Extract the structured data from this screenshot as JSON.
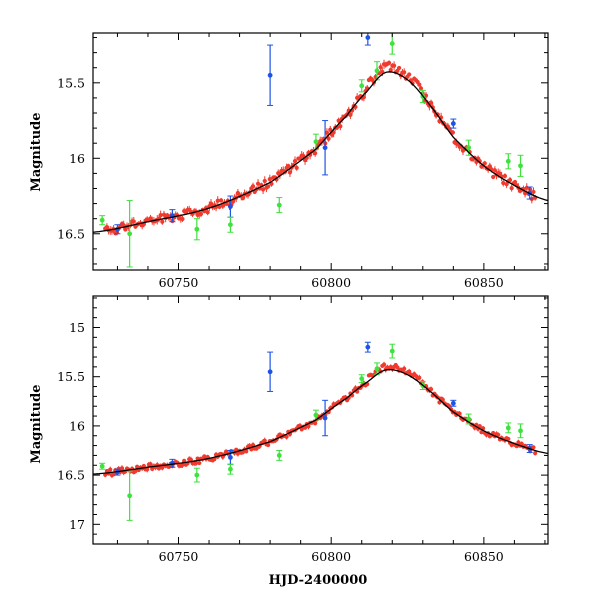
{
  "chart_data": [
    {
      "type": "scatter",
      "title": "",
      "xlabel": "",
      "ylabel": "Magnitude",
      "xlim": [
        60722,
        60871
      ],
      "ylim": [
        16.74,
        15.17
      ],
      "y_inverted": true,
      "x_ticks": [
        60750,
        60800,
        60850
      ],
      "y_ticks": [
        15.5,
        16,
        16.5
      ],
      "model_curve": {
        "x": [
          60722,
          60740,
          60760,
          60780,
          60795,
          60805,
          60812,
          60818,
          60825,
          60832,
          60840,
          60850,
          60860,
          60871
        ],
        "y": [
          16.49,
          16.42,
          16.33,
          16.16,
          15.94,
          15.72,
          15.55,
          15.43,
          15.48,
          15.64,
          15.86,
          16.05,
          16.18,
          16.28
        ]
      },
      "series": [
        {
          "color": "#1e54e6",
          "points": [
            {
              "x": 60730,
              "y": 16.47,
              "err": 0.03
            },
            {
              "x": 60748,
              "y": 16.38,
              "err": 0.04
            },
            {
              "x": 60767,
              "y": 16.32,
              "err": 0.07
            },
            {
              "x": 60780,
              "y": 15.45,
              "err": 0.2
            },
            {
              "x": 60798,
              "y": 15.93,
              "err": 0.18
            },
            {
              "x": 60812,
              "y": 15.2,
              "err": 0.05
            },
            {
              "x": 60840,
              "y": 15.77,
              "err": 0.03
            },
            {
              "x": 60865,
              "y": 16.23,
              "err": 0.04
            }
          ]
        },
        {
          "color": "#3de23d",
          "points": [
            {
              "x": 60725,
              "y": 16.41,
              "err": 0.03
            },
            {
              "x": 60734,
              "y": 16.5,
              "err": 0.22
            },
            {
              "x": 60756,
              "y": 16.47,
              "err": 0.07
            },
            {
              "x": 60767,
              "y": 16.44,
              "err": 0.05
            },
            {
              "x": 60783,
              "y": 16.31,
              "err": 0.05
            },
            {
              "x": 60795,
              "y": 15.89,
              "err": 0.05
            },
            {
              "x": 60810,
              "y": 15.52,
              "err": 0.04
            },
            {
              "x": 60815,
              "y": 15.42,
              "err": 0.06
            },
            {
              "x": 60820,
              "y": 15.24,
              "err": 0.07
            },
            {
              "x": 60830,
              "y": 15.59,
              "err": 0.04
            },
            {
              "x": 60845,
              "y": 15.93,
              "err": 0.05
            },
            {
              "x": 60858,
              "y": 16.02,
              "err": 0.05
            },
            {
              "x": 60862,
              "y": 16.05,
              "err": 0.07
            }
          ]
        }
      ]
    },
    {
      "type": "scatter",
      "title": "",
      "xlabel": "HJD-2400000",
      "ylabel": "Magnitude",
      "xlim": [
        60722,
        60871
      ],
      "ylim": [
        17.2,
        14.68
      ],
      "y_inverted": true,
      "x_ticks": [
        60750,
        60800,
        60850
      ],
      "y_ticks": [
        15,
        15.5,
        16,
        16.5,
        17
      ],
      "model_curve": {
        "x": [
          60722,
          60740,
          60760,
          60780,
          60795,
          60805,
          60812,
          60818,
          60825,
          60832,
          60840,
          60850,
          60860,
          60871
        ],
        "y": [
          16.49,
          16.42,
          16.33,
          16.16,
          15.94,
          15.72,
          15.55,
          15.43,
          15.48,
          15.64,
          15.86,
          16.05,
          16.18,
          16.28
        ]
      },
      "series": [
        {
          "color": "#1e54e6",
          "points": [
            {
              "x": 60730,
              "y": 16.47,
              "err": 0.03
            },
            {
              "x": 60748,
              "y": 16.38,
              "err": 0.04
            },
            {
              "x": 60767,
              "y": 16.32,
              "err": 0.07
            },
            {
              "x": 60780,
              "y": 15.45,
              "err": 0.2
            },
            {
              "x": 60798,
              "y": 15.92,
              "err": 0.18
            },
            {
              "x": 60812,
              "y": 15.2,
              "err": 0.05
            },
            {
              "x": 60840,
              "y": 15.77,
              "err": 0.03
            },
            {
              "x": 60865,
              "y": 16.23,
              "err": 0.04
            }
          ]
        },
        {
          "color": "#3de23d",
          "points": [
            {
              "x": 60725,
              "y": 16.41,
              "err": 0.03
            },
            {
              "x": 60734,
              "y": 16.71,
              "err": 0.25
            },
            {
              "x": 60756,
              "y": 16.5,
              "err": 0.07
            },
            {
              "x": 60767,
              "y": 16.44,
              "err": 0.05
            },
            {
              "x": 60783,
              "y": 16.3,
              "err": 0.05
            },
            {
              "x": 60795,
              "y": 15.89,
              "err": 0.05
            },
            {
              "x": 60810,
              "y": 15.52,
              "err": 0.04
            },
            {
              "x": 60815,
              "y": 15.42,
              "err": 0.06
            },
            {
              "x": 60820,
              "y": 15.24,
              "err": 0.07
            },
            {
              "x": 60830,
              "y": 15.59,
              "err": 0.04
            },
            {
              "x": 60845,
              "y": 15.93,
              "err": 0.05
            },
            {
              "x": 60858,
              "y": 16.02,
              "err": 0.05
            },
            {
              "x": 60862,
              "y": 16.05,
              "err": 0.07
            }
          ]
        }
      ]
    }
  ],
  "colors": {
    "blue_series": "#1e54e6",
    "green_series": "#3de23d",
    "red_series": "#f03a2e",
    "model_curve": "#000000"
  }
}
